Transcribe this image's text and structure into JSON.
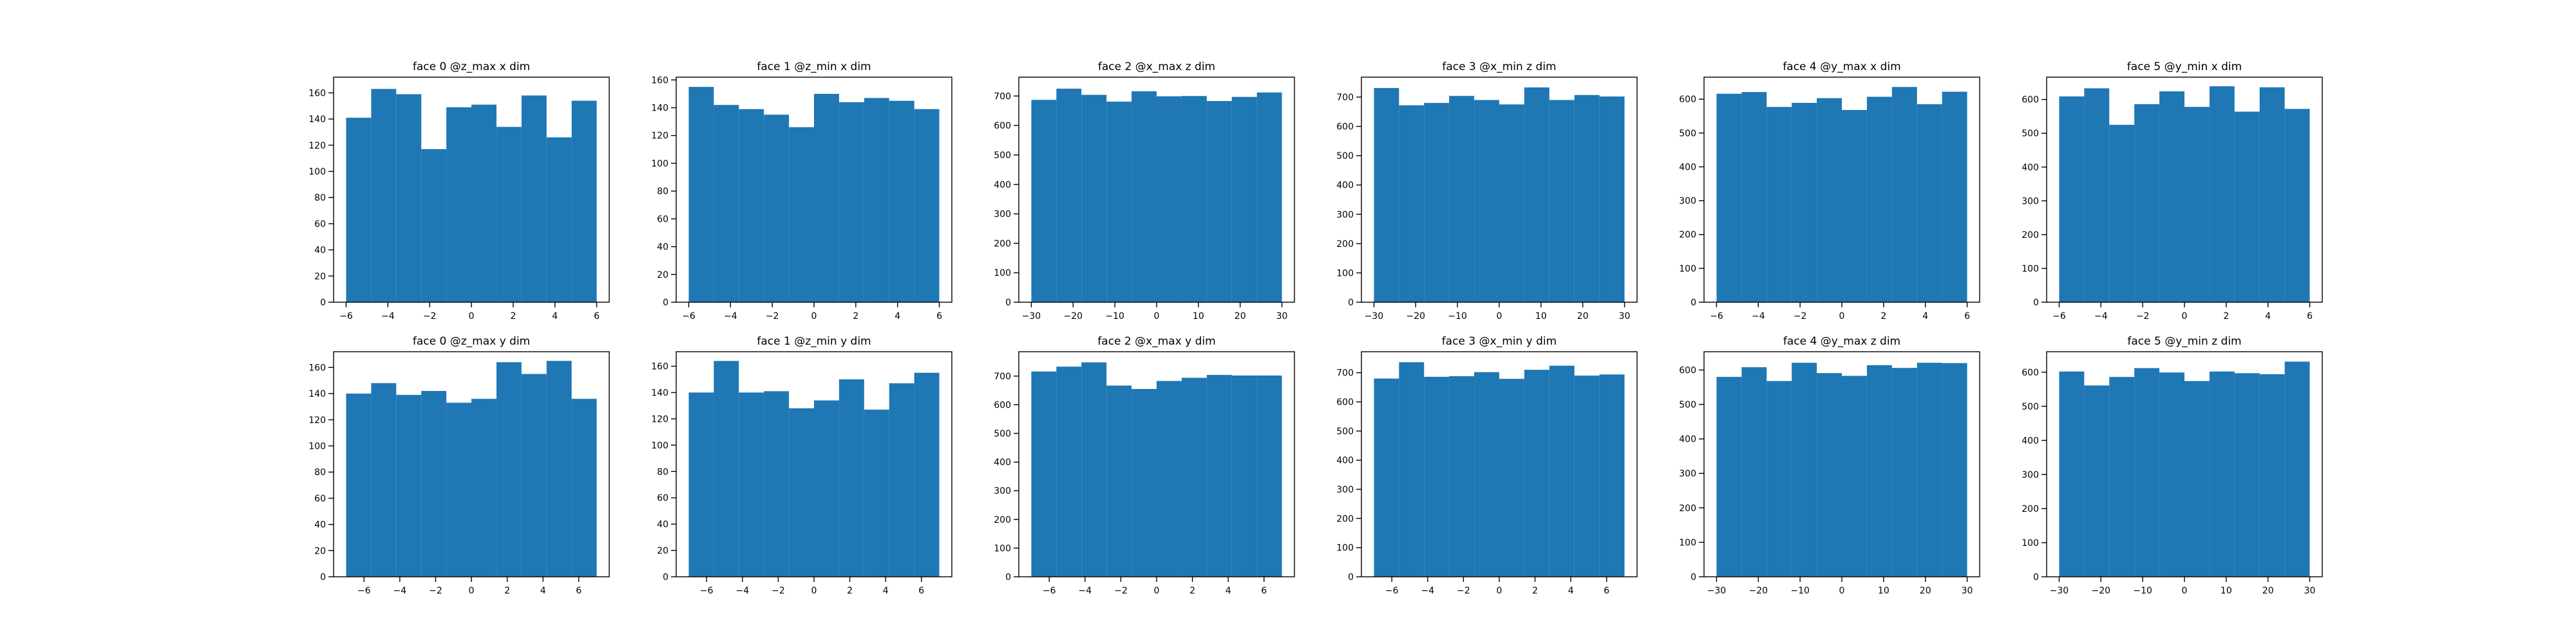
{
  "figure": {
    "background": "#ffffff",
    "bar_color": "#1f77b4"
  },
  "chart_data": [
    {
      "type": "bar",
      "title": "face 0 @z_max x dim",
      "xlim": [
        -6.6,
        6.6
      ],
      "ylim": [
        0,
        172
      ],
      "xticks": [
        "−6",
        "−4",
        "−2",
        "0",
        "2",
        "4",
        "6"
      ],
      "xtick_values": [
        -6,
        -4,
        -2,
        0,
        2,
        4,
        6
      ],
      "yticks": [
        "0",
        "20",
        "40",
        "60",
        "80",
        "100",
        "120",
        "140",
        "160"
      ],
      "ytick_values": [
        0,
        20,
        40,
        60,
        80,
        100,
        120,
        140,
        160
      ],
      "bin_edges": [
        -6,
        -4.8,
        -3.6,
        -2.4,
        -1.2,
        0,
        1.2,
        2.4,
        3.6,
        4.8,
        6
      ],
      "values": [
        141,
        163,
        159,
        117,
        149,
        151,
        134,
        158,
        126,
        154
      ]
    },
    {
      "type": "bar",
      "title": "face 1 @z_min x dim",
      "xlim": [
        -6.6,
        6.6
      ],
      "ylim": [
        0,
        162
      ],
      "xticks": [
        "−6",
        "−4",
        "−2",
        "0",
        "2",
        "4",
        "6"
      ],
      "xtick_values": [
        -6,
        -4,
        -2,
        0,
        2,
        4,
        6
      ],
      "yticks": [
        "0",
        "20",
        "40",
        "60",
        "80",
        "100",
        "120",
        "140",
        "160"
      ],
      "ytick_values": [
        0,
        20,
        40,
        60,
        80,
        100,
        120,
        140,
        160
      ],
      "bin_edges": [
        -6,
        -4.8,
        -3.6,
        -2.4,
        -1.2,
        0,
        1.2,
        2.4,
        3.6,
        4.8,
        6
      ],
      "values": [
        155,
        142,
        139,
        135,
        126,
        150,
        144,
        147,
        145,
        139
      ]
    },
    {
      "type": "bar",
      "title": "face 2 @x_max z dim",
      "xlim": [
        -33,
        33
      ],
      "ylim": [
        0,
        764
      ],
      "xticks": [
        "−30",
        "−20",
        "−10",
        "0",
        "10",
        "20",
        "30"
      ],
      "xtick_values": [
        -30,
        -20,
        -10,
        0,
        10,
        20,
        30
      ],
      "yticks": [
        "0",
        "100",
        "200",
        "300",
        "400",
        "500",
        "600",
        "700"
      ],
      "ytick_values": [
        0,
        100,
        200,
        300,
        400,
        500,
        600,
        700
      ],
      "bin_edges": [
        -30,
        -24,
        -18,
        -12,
        -6,
        0,
        6,
        12,
        18,
        24,
        30
      ],
      "values": [
        687,
        725,
        704,
        681,
        716,
        699,
        700,
        683,
        697,
        712
      ]
    },
    {
      "type": "bar",
      "title": "face 3 @x_min z dim",
      "xlim": [
        -33,
        33
      ],
      "ylim": [
        0,
        768
      ],
      "xticks": [
        "−30",
        "−20",
        "−10",
        "0",
        "10",
        "20",
        "30"
      ],
      "xtick_values": [
        -30,
        -20,
        -10,
        0,
        10,
        20,
        30
      ],
      "yticks": [
        "0",
        "100",
        "200",
        "300",
        "400",
        "500",
        "600",
        "700"
      ],
      "ytick_values": [
        0,
        100,
        200,
        300,
        400,
        500,
        600,
        700
      ],
      "bin_edges": [
        -30,
        -24,
        -18,
        -12,
        -6,
        0,
        6,
        12,
        18,
        24,
        30
      ],
      "values": [
        731,
        672,
        680,
        704,
        690,
        675,
        733,
        690,
        707,
        702
      ]
    },
    {
      "type": "bar",
      "title": "face 4 @y_max x dim",
      "xlim": [
        -6.6,
        6.6
      ],
      "ylim": [
        0,
        665
      ],
      "xticks": [
        "−6",
        "−4",
        "−2",
        "0",
        "2",
        "4",
        "6"
      ],
      "xtick_values": [
        -6,
        -4,
        -2,
        0,
        2,
        4,
        6
      ],
      "yticks": [
        "0",
        "100",
        "200",
        "300",
        "400",
        "500",
        "600"
      ],
      "ytick_values": [
        0,
        100,
        200,
        300,
        400,
        500,
        600
      ],
      "bin_edges": [
        -6,
        -4.8,
        -3.6,
        -2.4,
        -1.2,
        0,
        1.2,
        2.4,
        3.6,
        4.8,
        6
      ],
      "values": [
        616,
        621,
        577,
        589,
        603,
        568,
        607,
        636,
        585,
        622
      ]
    },
    {
      "type": "bar",
      "title": "face 5 @y_min x dim",
      "xlim": [
        -6.6,
        6.6
      ],
      "ylim": [
        0,
        666
      ],
      "xticks": [
        "−6",
        "−4",
        "−2",
        "0",
        "2",
        "4",
        "6"
      ],
      "xtick_values": [
        -6,
        -4,
        -2,
        0,
        2,
        4,
        6
      ],
      "yticks": [
        "0",
        "100",
        "200",
        "300",
        "400",
        "500",
        "600"
      ],
      "ytick_values": [
        0,
        100,
        200,
        300,
        400,
        500,
        600
      ],
      "bin_edges": [
        -6,
        -4.8,
        -3.6,
        -2.4,
        -1.2,
        0,
        1.2,
        2.4,
        3.6,
        4.8,
        6
      ],
      "values": [
        609,
        633,
        525,
        586,
        624,
        578,
        639,
        564,
        636,
        572
      ]
    },
    {
      "type": "bar",
      "title": "face 0 @z_max y dim",
      "xlim": [
        -7.7,
        7.7
      ],
      "ylim": [
        0,
        172
      ],
      "xticks": [
        "−6",
        "−4",
        "−2",
        "0",
        "2",
        "4",
        "6"
      ],
      "xtick_values": [
        -6,
        -4,
        -2,
        0,
        2,
        4,
        6
      ],
      "yticks": [
        "0",
        "20",
        "40",
        "60",
        "80",
        "100",
        "120",
        "140",
        "160"
      ],
      "ytick_values": [
        0,
        20,
        40,
        60,
        80,
        100,
        120,
        140,
        160
      ],
      "bin_edges": [
        -7,
        -5.6,
        -4.2,
        -2.8,
        -1.4,
        0,
        1.4,
        2.8,
        4.2,
        5.6,
        7
      ],
      "values": [
        140,
        148,
        139,
        142,
        133,
        136,
        164,
        155,
        165,
        136
      ]
    },
    {
      "type": "bar",
      "title": "face 1 @z_min y dim",
      "xlim": [
        -7.7,
        7.7
      ],
      "ylim": [
        0,
        171
      ],
      "xticks": [
        "−6",
        "−4",
        "−2",
        "0",
        "2",
        "4",
        "6"
      ],
      "xtick_values": [
        -6,
        -4,
        -2,
        0,
        2,
        4,
        6
      ],
      "yticks": [
        "0",
        "20",
        "40",
        "60",
        "80",
        "100",
        "120",
        "140",
        "160"
      ],
      "ytick_values": [
        0,
        20,
        40,
        60,
        80,
        100,
        120,
        140,
        160
      ],
      "bin_edges": [
        -7,
        -5.6,
        -4.2,
        -2.8,
        -1.4,
        0,
        1.4,
        2.8,
        4.2,
        5.6,
        7
      ],
      "values": [
        140,
        164,
        140,
        141,
        128,
        134,
        150,
        127,
        147,
        155
      ]
    },
    {
      "type": "bar",
      "title": "face 2 @x_max y dim",
      "xlim": [
        -7.7,
        7.7
      ],
      "ylim": [
        0,
        785
      ],
      "xticks": [
        "−6",
        "−4",
        "−2",
        "0",
        "2",
        "4",
        "6"
      ],
      "xtick_values": [
        -6,
        -4,
        -2,
        0,
        2,
        4,
        6
      ],
      "yticks": [
        "0",
        "100",
        "200",
        "300",
        "400",
        "500",
        "600",
        "700"
      ],
      "ytick_values": [
        0,
        100,
        200,
        300,
        400,
        500,
        600,
        700
      ],
      "bin_edges": [
        -7,
        -5.6,
        -4.2,
        -2.8,
        -1.4,
        0,
        1.4,
        2.8,
        4.2,
        5.6,
        7
      ],
      "values": [
        716,
        733,
        748,
        667,
        655,
        683,
        694,
        704,
        702,
        702
      ]
    },
    {
      "type": "bar",
      "title": "face 3 @x_min y dim",
      "xlim": [
        -7.7,
        7.7
      ],
      "ylim": [
        0,
        772
      ],
      "xticks": [
        "−6",
        "−4",
        "−2",
        "0",
        "2",
        "4",
        "6"
      ],
      "xtick_values": [
        -6,
        -4,
        -2,
        0,
        2,
        4,
        6
      ],
      "yticks": [
        "0",
        "100",
        "200",
        "300",
        "400",
        "500",
        "600",
        "700"
      ],
      "ytick_values": [
        0,
        100,
        200,
        300,
        400,
        500,
        600,
        700
      ],
      "bin_edges": [
        -7,
        -5.6,
        -4.2,
        -2.8,
        -1.4,
        0,
        1.4,
        2.8,
        4.2,
        5.6,
        7
      ],
      "values": [
        680,
        736,
        686,
        688,
        702,
        679,
        710,
        724,
        690,
        694
      ]
    },
    {
      "type": "bar",
      "title": "face 4 @y_max z dim",
      "xlim": [
        -33,
        33
      ],
      "ylim": [
        0,
        653
      ],
      "xticks": [
        "−30",
        "−20",
        "−10",
        "0",
        "10",
        "20",
        "30"
      ],
      "xtick_values": [
        -30,
        -20,
        -10,
        0,
        10,
        20,
        30
      ],
      "yticks": [
        "0",
        "100",
        "200",
        "300",
        "400",
        "500",
        "600"
      ],
      "ytick_values": [
        0,
        100,
        200,
        300,
        400,
        500,
        600
      ],
      "bin_edges": [
        -30,
        -24,
        -18,
        -12,
        -6,
        0,
        6,
        12,
        18,
        24,
        30
      ],
      "values": [
        580,
        608,
        568,
        621,
        591,
        583,
        614,
        606,
        621,
        620
      ]
    },
    {
      "type": "bar",
      "title": "face 5 @y_min z dim",
      "xlim": [
        -33,
        33
      ],
      "ylim": [
        0,
        660
      ],
      "xticks": [
        "−30",
        "−20",
        "−10",
        "0",
        "10",
        "20",
        "30"
      ],
      "xtick_values": [
        -30,
        -20,
        -10,
        0,
        10,
        20,
        30
      ],
      "yticks": [
        "0",
        "100",
        "200",
        "300",
        "400",
        "500",
        "600"
      ],
      "ytick_values": [
        0,
        100,
        200,
        300,
        400,
        500,
        600
      ],
      "bin_edges": [
        -30,
        -24,
        -18,
        -12,
        -6,
        0,
        6,
        12,
        18,
        24,
        30
      ],
      "values": [
        602,
        561,
        586,
        612,
        599,
        574,
        602,
        597,
        594,
        631
      ]
    }
  ]
}
